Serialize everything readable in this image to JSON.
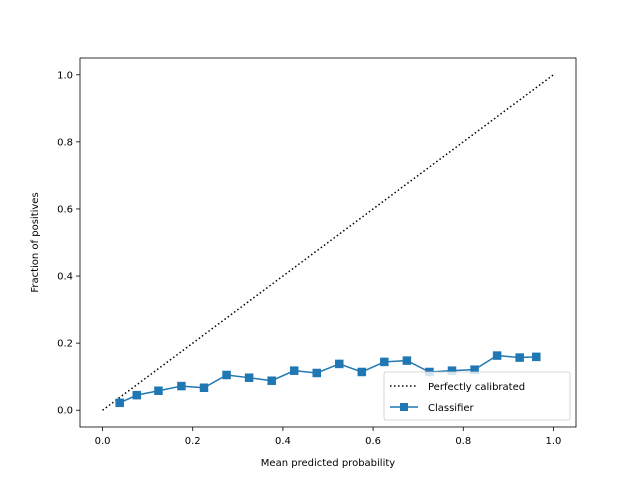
{
  "chart_data": {
    "type": "line",
    "title": "",
    "xlabel": "Mean predicted probability",
    "ylabel": "Fraction of positives",
    "xlim": [
      -0.05,
      1.05
    ],
    "ylim": [
      -0.05,
      1.05
    ],
    "xticks": [
      0.0,
      0.2,
      0.4,
      0.6,
      0.8,
      1.0
    ],
    "yticks": [
      0.0,
      0.2,
      0.4,
      0.6,
      0.8,
      1.0
    ],
    "xtick_labels": [
      "0.0",
      "0.2",
      "0.4",
      "0.6",
      "0.8",
      "1.0"
    ],
    "ytick_labels": [
      "0.0",
      "0.2",
      "0.4",
      "0.6",
      "0.8",
      "1.0"
    ],
    "grid": false,
    "legend_position": "lower-right",
    "series": [
      {
        "name": "Perfectly calibrated",
        "style": "dotted",
        "color": "#000000",
        "x": [
          0.0,
          1.0
        ],
        "y": [
          0.0,
          1.0
        ]
      },
      {
        "name": "Classifier",
        "style": "solid",
        "marker": "square",
        "color": "#1f77b4",
        "x": [
          0.038,
          0.076,
          0.124,
          0.175,
          0.225,
          0.275,
          0.325,
          0.375,
          0.425,
          0.475,
          0.525,
          0.575,
          0.625,
          0.675,
          0.725,
          0.775,
          0.825,
          0.875,
          0.925,
          0.962
        ],
        "y": [
          0.022,
          0.045,
          0.058,
          0.072,
          0.067,
          0.105,
          0.097,
          0.088,
          0.118,
          0.111,
          0.138,
          0.114,
          0.144,
          0.148,
          0.114,
          0.118,
          0.121,
          0.163,
          0.157,
          0.159
        ]
      }
    ]
  }
}
